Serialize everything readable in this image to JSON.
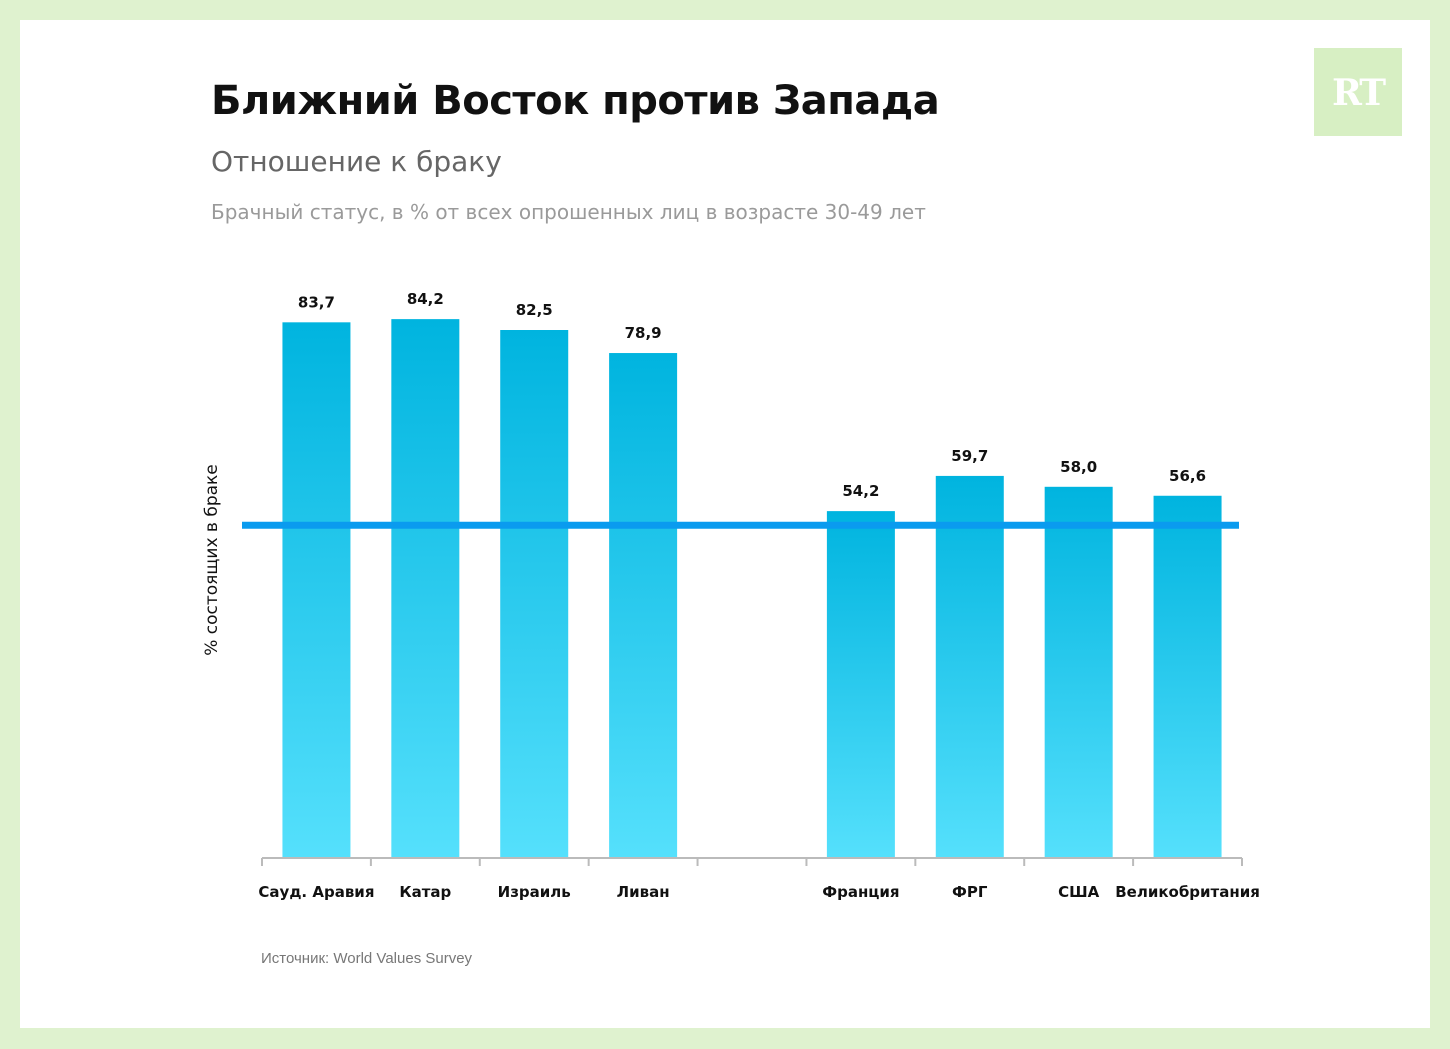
{
  "header": {
    "title": "Ближний Восток против Запада",
    "subtitle": "Отношение к браку",
    "note": "Брачный статус, в % от всех опрошенных лиц в возрасте 30-49 лет"
  },
  "logo": {
    "text": "RT"
  },
  "footer": {
    "source": "Источник: World Values Survey"
  },
  "colors": {
    "page_bg": "#dff2cf",
    "bar_top": "#00b4df",
    "bar_bottom": "#55e0fc",
    "reference_line": "#0a9bef",
    "axis": "#bbbbbb"
  },
  "chart_data": {
    "type": "bar",
    "title": "Ближний Восток против Запада",
    "subtitle": "Отношение к браку",
    "xlabel": "",
    "ylabel": "% состоящих в браке",
    "ylim": [
      0,
      100
    ],
    "grid": false,
    "categories": [
      "Сауд. Аравия",
      "Катар",
      "Израиль",
      "Ливан",
      "",
      "Франция",
      "ФРГ",
      "США",
      "Великобритания"
    ],
    "values": [
      83.7,
      84.2,
      82.5,
      78.9,
      null,
      54.2,
      59.7,
      58.0,
      56.6
    ],
    "value_labels": [
      "83,7",
      "84,2",
      "82,5",
      "78,9",
      "",
      "54,2",
      "59,7",
      "58,0",
      "56,6"
    ],
    "reference_line": 52
  }
}
